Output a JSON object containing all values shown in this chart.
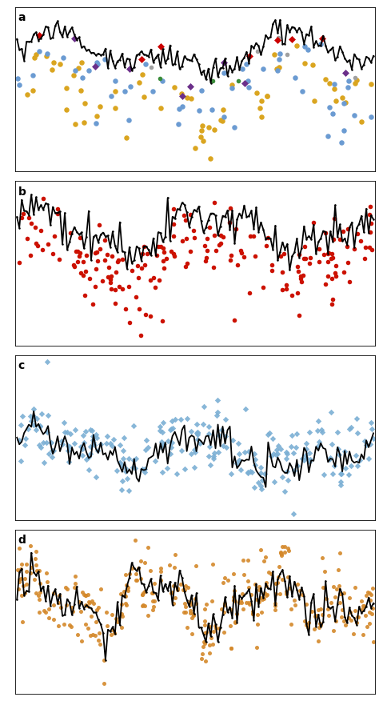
{
  "panel_labels": [
    "a",
    "b",
    "c",
    "d"
  ],
  "colors_a": {
    "gold": "#DAA520",
    "blue": "#6B9BD2",
    "red": "#CC0000",
    "green": "#3A8C3A",
    "gray": "#A0A0A0",
    "purple": "#6B2F8A"
  },
  "color_b": "#CC1100",
  "color_c": "#7BAFD4",
  "color_d": "#D4882A",
  "label_fontsize": 10,
  "background": "#FFFFFF",
  "line_color": "#000000",
  "line_width": 1.3,
  "scatter_size_a_large": 22,
  "scatter_size_a_small": 16,
  "scatter_size_b": 16,
  "scatter_size_c": 13,
  "scatter_size_d": 13
}
